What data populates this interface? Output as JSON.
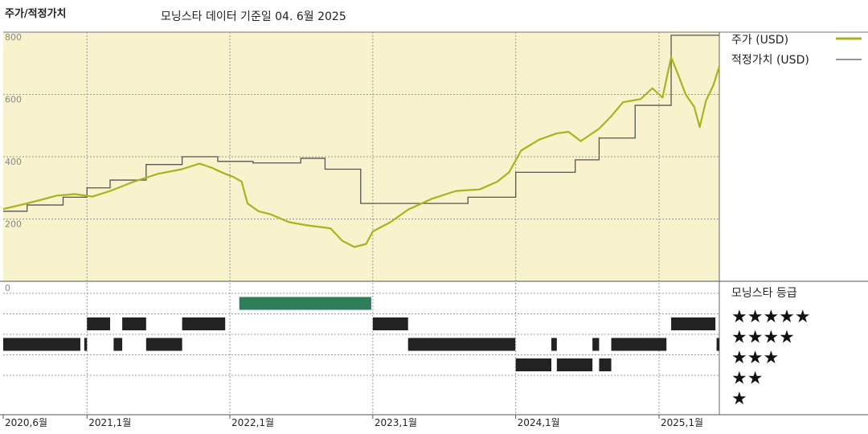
{
  "header": {
    "title": "주가/적정가치",
    "subtitle": "모닝스타 데이터 기준일 04. 6월 2025"
  },
  "colors": {
    "plot_bg": "#f8f3cd",
    "price": "#a8b41e",
    "fair_value": "#555555",
    "rating_bar": "#222222",
    "rating_bar_top": "#2e7d5b"
  },
  "chart_data": [
    {
      "type": "line",
      "ylim": [
        0,
        800
      ],
      "yticks": [
        "800",
        "600",
        "400",
        "200"
      ],
      "x_range": [
        "2020-06-01",
        "2025-06-04"
      ],
      "x_tick_labels": [
        {
          "date": "2020-06-01",
          "label": "2020,6월"
        },
        {
          "date": "2021-01-01",
          "label": "2021,1월"
        },
        {
          "date": "2022-01-01",
          "label": "2022,1월"
        },
        {
          "date": "2023-01-01",
          "label": "2023,1월"
        },
        {
          "date": "2024-01-01",
          "label": "2024,1월"
        },
        {
          "date": "2025-01-01",
          "label": "2025,1월"
        }
      ],
      "series": [
        {
          "name": "주가 (USD)",
          "legend_label": "주가 (USD)",
          "points": [
            [
              "2020-06-01",
              232
            ],
            [
              "2020-07-15",
              245
            ],
            [
              "2020-09-01",
              260
            ],
            [
              "2020-10-15",
              275
            ],
            [
              "2020-12-01",
              280
            ],
            [
              "2021-01-15",
              272
            ],
            [
              "2021-03-01",
              290
            ],
            [
              "2021-05-01",
              320
            ],
            [
              "2021-07-01",
              345
            ],
            [
              "2021-09-01",
              360
            ],
            [
              "2021-10-15",
              378
            ],
            [
              "2021-11-15",
              365
            ],
            [
              "2021-12-20",
              345
            ],
            [
              "2022-01-10",
              335
            ],
            [
              "2022-01-31",
              320
            ],
            [
              "2022-02-15",
              250
            ],
            [
              "2022-03-15",
              225
            ],
            [
              "2022-04-15",
              215
            ],
            [
              "2022-06-01",
              190
            ],
            [
              "2022-07-15",
              180
            ],
            [
              "2022-09-15",
              170
            ],
            [
              "2022-10-15",
              130
            ],
            [
              "2022-11-15",
              110
            ],
            [
              "2022-12-15",
              120
            ],
            [
              "2023-01-01",
              160
            ],
            [
              "2023-02-15",
              190
            ],
            [
              "2023-04-01",
              230
            ],
            [
              "2023-06-01",
              265
            ],
            [
              "2023-08-01",
              290
            ],
            [
              "2023-10-01",
              295
            ],
            [
              "2023-11-15",
              320
            ],
            [
              "2023-12-15",
              350
            ],
            [
              "2024-01-15",
              420
            ],
            [
              "2024-03-01",
              455
            ],
            [
              "2024-04-15",
              475
            ],
            [
              "2024-05-15",
              480
            ],
            [
              "2024-06-15",
              450
            ],
            [
              "2024-08-01",
              490
            ],
            [
              "2024-09-01",
              530
            ],
            [
              "2024-10-01",
              575
            ],
            [
              "2024-11-15",
              585
            ],
            [
              "2024-12-15",
              620
            ],
            [
              "2025-01-10",
              590
            ],
            [
              "2025-02-01",
              720
            ],
            [
              "2025-02-20",
              660
            ],
            [
              "2025-03-10",
              600
            ],
            [
              "2025-04-01",
              560
            ],
            [
              "2025-04-15",
              495
            ],
            [
              "2025-05-01",
              580
            ],
            [
              "2025-05-20",
              630
            ],
            [
              "2025-06-04",
              690
            ]
          ]
        },
        {
          "name": "적정가치 (USD)",
          "legend_label": "적정가치 (USD)",
          "step": true,
          "points": [
            [
              "2020-06-01",
              225
            ],
            [
              "2020-08-01",
              245
            ],
            [
              "2020-11-01",
              270
            ],
            [
              "2021-01-01",
              300
            ],
            [
              "2021-03-01",
              325
            ],
            [
              "2021-06-01",
              375
            ],
            [
              "2021-09-01",
              400
            ],
            [
              "2021-12-01",
              385
            ],
            [
              "2022-03-01",
              380
            ],
            [
              "2022-07-01",
              395
            ],
            [
              "2022-09-01",
              360
            ],
            [
              "2022-12-01",
              250
            ],
            [
              "2023-06-01",
              250
            ],
            [
              "2023-09-01",
              270
            ],
            [
              "2024-01-01",
              350
            ],
            [
              "2024-06-01",
              390
            ],
            [
              "2024-08-01",
              460
            ],
            [
              "2024-11-01",
              565
            ],
            [
              "2025-02-01",
              790
            ],
            [
              "2025-06-04",
              790
            ]
          ]
        }
      ]
    },
    {
      "type": "bar",
      "title": "모닝스타 등급",
      "levels": [
        "★★★★★",
        "★★★★",
        "★★★",
        "★★",
        "★"
      ],
      "intervals": [
        {
          "stars": 3,
          "start": "2020-06-01",
          "end": "2020-12-15"
        },
        {
          "stars": 3,
          "start": "2020-12-25",
          "end": "2021-01-01"
        },
        {
          "stars": 4,
          "start": "2021-01-01",
          "end": "2021-03-01"
        },
        {
          "stars": 3,
          "start": "2021-03-10",
          "end": "2021-04-01"
        },
        {
          "stars": 4,
          "start": "2021-04-01",
          "end": "2021-06-01"
        },
        {
          "stars": 3,
          "start": "2021-06-01",
          "end": "2021-09-01"
        },
        {
          "stars": 4,
          "start": "2021-09-01",
          "end": "2021-12-20"
        },
        {
          "stars": 5,
          "start": "2022-01-25",
          "end": "2022-12-28"
        },
        {
          "stars": 4,
          "start": "2023-01-01",
          "end": "2023-04-01"
        },
        {
          "stars": 3,
          "start": "2023-04-01",
          "end": "2023-12-31"
        },
        {
          "stars": 2,
          "start": "2024-01-01",
          "end": "2024-04-01"
        },
        {
          "stars": 3,
          "start": "2024-04-01",
          "end": "2024-04-15"
        },
        {
          "stars": 2,
          "start": "2024-04-15",
          "end": "2024-07-15"
        },
        {
          "stars": 3,
          "start": "2024-07-15",
          "end": "2024-08-01"
        },
        {
          "stars": 2,
          "start": "2024-08-01",
          "end": "2024-09-01"
        },
        {
          "stars": 3,
          "start": "2024-09-01",
          "end": "2025-01-20"
        },
        {
          "stars": 4,
          "start": "2025-02-01",
          "end": "2025-05-25"
        },
        {
          "stars": 3,
          "start": "2025-05-28",
          "end": "2025-06-04"
        }
      ]
    }
  ]
}
